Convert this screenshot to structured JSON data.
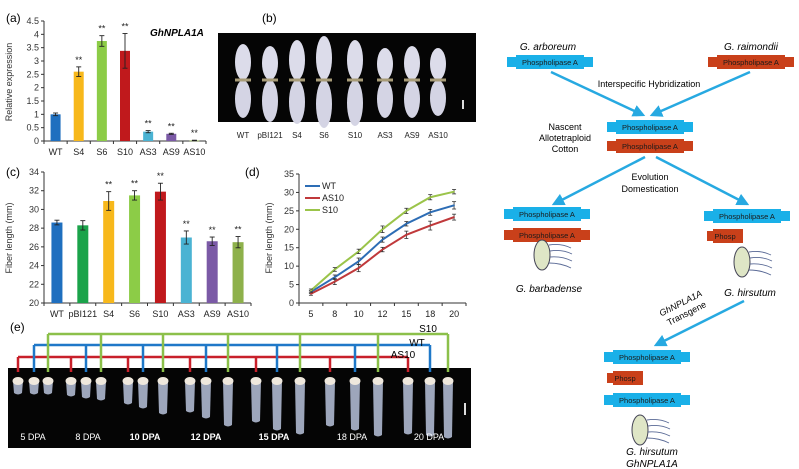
{
  "panels": {
    "a": "(a)",
    "b": "(b)",
    "c": "(c)",
    "d": "(d)",
    "e": "(e)"
  },
  "chart_data": [
    {
      "id": "a",
      "type": "bar",
      "title": "GhNPLA1A",
      "ylabel": "Relative expression",
      "xlabel": "",
      "ylim": [
        0,
        4.5
      ],
      "yticks": [
        "0",
        "0.5",
        "1",
        "1.5",
        "2",
        "2.5",
        "3",
        "3.5",
        "4",
        "4.5"
      ],
      "categories": [
        "WT",
        "S4",
        "S6",
        "S10",
        "AS3",
        "AS9",
        "AS10"
      ],
      "values": [
        1.0,
        2.6,
        3.75,
        3.38,
        0.35,
        0.27,
        0.02
      ],
      "errors": [
        0.05,
        0.18,
        0.2,
        0.65,
        0.04,
        0.02,
        0.01
      ],
      "significance": [
        "",
        "**",
        "**",
        "**",
        "**",
        "**",
        "**"
      ],
      "colors": [
        "#1f6fbf",
        "#f7b81b",
        "#8ccc47",
        "#c0191c",
        "#4ab3d3",
        "#7b5aa6",
        "#8eb14b"
      ]
    },
    {
      "id": "c",
      "type": "bar",
      "title": "",
      "ylabel": "Fiber length (mm)",
      "xlabel": "",
      "ylim": [
        20,
        34
      ],
      "yticks": [
        "20",
        "22",
        "24",
        "26",
        "28",
        "30",
        "32",
        "34"
      ],
      "categories": [
        "WT",
        "pBI121",
        "S4",
        "S6",
        "S10",
        "AS3",
        "AS9",
        "AS10"
      ],
      "values": [
        28.6,
        28.3,
        30.9,
        31.5,
        31.9,
        27.0,
        26.6,
        26.5
      ],
      "errors": [
        0.25,
        0.5,
        1.0,
        0.5,
        0.9,
        0.7,
        0.45,
        0.6
      ],
      "significance": [
        "",
        "",
        "**",
        "**",
        "**",
        "**",
        "**",
        "**"
      ],
      "colors": [
        "#1f6fbf",
        "#1ba34a",
        "#f7b81b",
        "#8ccc47",
        "#c0191c",
        "#4ab3d3",
        "#7b5aa6",
        "#8eb14b"
      ]
    },
    {
      "id": "d",
      "type": "line",
      "title": "",
      "ylabel": "Fiber length (mm)",
      "xlabel": "",
      "ylim": [
        0,
        35
      ],
      "yticks": [
        "0",
        "5",
        "10",
        "15",
        "20",
        "25",
        "30",
        "35"
      ],
      "x": [
        "5",
        "8",
        "10",
        "12",
        "15",
        "18",
        "20"
      ],
      "legend_position": "top-left",
      "series": [
        {
          "name": "WT",
          "color": "#2d6db5",
          "values": [
            3.0,
            7.0,
            11.3,
            17.2,
            21.5,
            24.6,
            26.5
          ],
          "errors": [
            0.4,
            0.6,
            0.9,
            0.7,
            0.6,
            0.8,
            1.0
          ]
        },
        {
          "name": "AS10",
          "color": "#c0393b",
          "values": [
            2.5,
            5.8,
            9.5,
            14.5,
            18.5,
            21.0,
            23.3
          ],
          "errors": [
            0.4,
            0.8,
            1.0,
            0.6,
            1.0,
            1.2,
            0.8
          ]
        },
        {
          "name": "S10",
          "color": "#9bc44a",
          "values": [
            3.4,
            9.1,
            14.0,
            20.0,
            25.0,
            28.7,
            30.2
          ],
          "errors": [
            0.4,
            0.5,
            0.6,
            0.9,
            0.7,
            0.7,
            0.6
          ]
        }
      ]
    }
  ],
  "photo_b": {
    "labels": [
      "WT",
      "pBI121",
      "S4",
      "S6",
      "S10",
      "AS3",
      "AS9",
      "AS10"
    ]
  },
  "photo_e": {
    "dpa_labels": [
      "5 DPA",
      "8 DPA",
      "10 DPA",
      "12 DPA",
      "15 DPA",
      "18 DPA",
      "20 DPA"
    ],
    "dpa_bold": [
      false,
      false,
      true,
      true,
      true,
      false,
      false
    ],
    "bracket_labels": {
      "S10": "S10",
      "WT": "WT",
      "AS10": "AS10"
    },
    "bracket_colors": {
      "S10": "#8cc04a",
      "WT": "#1f78c8",
      "AS10": "#c8202a"
    }
  },
  "diagram": {
    "g_arboreum": "G. arboreum",
    "g_raimondii": "G. raimondii",
    "gene_label": "Phospholipase A",
    "gene_truncated": "Phosp",
    "hybridization": "Interspecific Hybridization",
    "nascent_1": "Nascent",
    "nascent_2": "Allotetraploid",
    "nascent_3": "Cotton",
    "evolution_1": "Evolution",
    "evolution_2": "Domestication",
    "g_barbadense": "G. barbadense",
    "g_hirsutum": "G. hirsutum",
    "transgene_1": "GhNPLA1A",
    "transgene_2": "Transgene",
    "final_1": "G. hirsutum",
    "final_2": "GhNPLA1A",
    "colors": {
      "blue": "#1ab0e8",
      "red": "#c9401a",
      "arrow": "#27a9e1",
      "seed": "#dfe6c6"
    }
  }
}
